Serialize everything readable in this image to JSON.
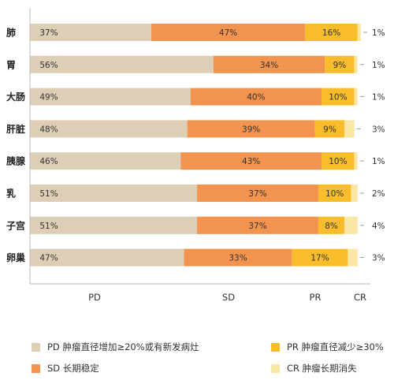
{
  "chart_data": {
    "type": "bar",
    "orientation": "horizontal",
    "stacked": true,
    "categories": [
      "肺",
      "胃",
      "大肠",
      "肝脏",
      "胰腺",
      "乳",
      "子宫",
      "卵巢"
    ],
    "series": [
      {
        "name": "PD",
        "values": [
          37,
          56,
          49,
          48,
          46,
          51,
          51,
          47
        ],
        "labels": [
          "37%",
          "56%",
          "49%",
          "48%",
          "46%",
          "51%",
          "51%",
          "47%"
        ]
      },
      {
        "name": "SD",
        "values": [
          47,
          34,
          40,
          39,
          43,
          37,
          37,
          33
        ],
        "labels": [
          "47%",
          "34%",
          "40%",
          "39%",
          "43%",
          "37%",
          "37%",
          "33%"
        ]
      },
      {
        "name": "PR",
        "values": [
          16,
          9,
          10,
          9,
          10,
          10,
          8,
          17
        ],
        "labels": [
          "16%",
          "9%",
          "10%",
          "9%",
          "10%",
          "10%",
          "8%",
          "17%"
        ]
      },
      {
        "name": "CR",
        "values": [
          1,
          1,
          1,
          3,
          1,
          2,
          4,
          3
        ],
        "labels": [
          "1%",
          "1%",
          "1%",
          "3%",
          "1%",
          "2%",
          "4%",
          "3%"
        ]
      }
    ],
    "colors": [
      "#dccfb6",
      "#f39350",
      "#f9bc2a",
      "#fae6a6"
    ],
    "x_axis_labels": [
      "PD",
      "SD",
      "PR",
      "CR"
    ],
    "xlim": [
      0,
      100
    ],
    "grid": false,
    "legend_position": "bottom"
  },
  "legend": [
    {
      "label": "PD 肿瘤直径增加≥20%或有新发病灶",
      "color": "#dccfb6"
    },
    {
      "label": "PR 肿瘤直径减少≥30%",
      "color": "#f9bc2a"
    },
    {
      "label": "SD 长期稳定",
      "color": "#f39350"
    },
    {
      "label": "CR 肿瘤长期消失",
      "color": "#fae6a6"
    }
  ]
}
